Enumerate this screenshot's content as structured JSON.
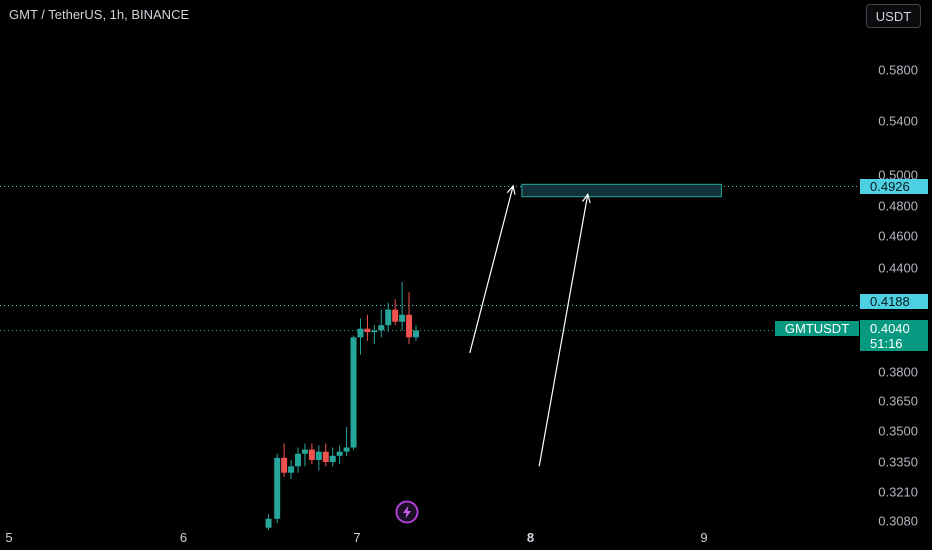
{
  "header": {
    "title": "GMT / TetherUS, 1h, BINANCE",
    "currency": "USDT"
  },
  "price_tags": {
    "target_level": "0.4926",
    "resistance_level": "0.4188",
    "symbol": "GMTUSDT",
    "last_price": "0.4040",
    "countdown": "51:16"
  },
  "colors": {
    "up": "#26a69a",
    "down": "#ef5350",
    "cyan": "#4dd0e1",
    "teal_tag": "#089981",
    "zone_fill": "#12323a",
    "zone_border": "#26a69a",
    "annotation": "#ffffff",
    "grid_text": "#b2b5be"
  },
  "icons": {
    "replay": "lightning-bolt-icon"
  },
  "chart_data": {
    "type": "candlestick",
    "title": "",
    "y_scale": "log",
    "y_ticks": [
      "0.5800",
      "0.5400",
      "0.5000",
      "0.4800",
      "0.4600",
      "0.4400",
      "0.3800",
      "0.3650",
      "0.3500",
      "0.3350",
      "0.3210",
      "0.3080"
    ],
    "x_ticks": [
      "5",
      "6",
      "7",
      "8",
      "9"
    ],
    "x_range": [
      5,
      9.3
    ],
    "y_range": [
      0.307,
      0.62
    ],
    "grid": false,
    "horizontal_lines": [
      {
        "price": 0.4926,
        "style": "dotted",
        "color": "#4dd0e1"
      },
      {
        "price": 0.4188,
        "style": "dotted",
        "color": "#4dd0e1"
      },
      {
        "price": 0.404,
        "style": "dotted",
        "color": "#26a69a"
      }
    ],
    "target_zone": {
      "x_start": 7.95,
      "x_end": 9.1,
      "price_top": 0.494,
      "price_bottom": 0.486
    },
    "arrows": [
      {
        "from": [
          7.65,
          0.391
        ],
        "to": [
          7.9,
          0.493
        ]
      },
      {
        "from": [
          8.05,
          0.333
        ],
        "to": [
          8.33,
          0.4875
        ]
      }
    ],
    "candles": [
      {
        "x": 6.49,
        "o": 0.305,
        "h": 0.311,
        "l": 0.304,
        "c": 0.309
      },
      {
        "x": 6.54,
        "o": 0.309,
        "h": 0.339,
        "l": 0.307,
        "c": 0.337
      },
      {
        "x": 6.58,
        "o": 0.337,
        "h": 0.344,
        "l": 0.328,
        "c": 0.33
      },
      {
        "x": 6.62,
        "o": 0.33,
        "h": 0.336,
        "l": 0.327,
        "c": 0.333
      },
      {
        "x": 6.66,
        "o": 0.333,
        "h": 0.342,
        "l": 0.33,
        "c": 0.339
      },
      {
        "x": 6.7,
        "o": 0.339,
        "h": 0.344,
        "l": 0.333,
        "c": 0.341
      },
      {
        "x": 6.74,
        "o": 0.341,
        "h": 0.344,
        "l": 0.334,
        "c": 0.336
      },
      {
        "x": 6.78,
        "o": 0.336,
        "h": 0.343,
        "l": 0.331,
        "c": 0.34
      },
      {
        "x": 6.82,
        "o": 0.34,
        "h": 0.344,
        "l": 0.333,
        "c": 0.335
      },
      {
        "x": 6.86,
        "o": 0.335,
        "h": 0.342,
        "l": 0.333,
        "c": 0.338
      },
      {
        "x": 6.9,
        "o": 0.338,
        "h": 0.343,
        "l": 0.334,
        "c": 0.34
      },
      {
        "x": 6.94,
        "o": 0.34,
        "h": 0.352,
        "l": 0.338,
        "c": 0.342
      },
      {
        "x": 6.98,
        "o": 0.342,
        "h": 0.401,
        "l": 0.341,
        "c": 0.4
      },
      {
        "x": 7.02,
        "o": 0.4,
        "h": 0.411,
        "l": 0.39,
        "c": 0.405
      },
      {
        "x": 7.06,
        "o": 0.405,
        "h": 0.413,
        "l": 0.398,
        "c": 0.403
      },
      {
        "x": 7.1,
        "o": 0.403,
        "h": 0.407,
        "l": 0.396,
        "c": 0.404
      },
      {
        "x": 7.14,
        "o": 0.404,
        "h": 0.416,
        "l": 0.4,
        "c": 0.407
      },
      {
        "x": 7.18,
        "o": 0.407,
        "h": 0.42,
        "l": 0.403,
        "c": 0.416
      },
      {
        "x": 7.22,
        "o": 0.416,
        "h": 0.422,
        "l": 0.407,
        "c": 0.409
      },
      {
        "x": 7.26,
        "o": 0.409,
        "h": 0.432,
        "l": 0.404,
        "c": 0.413
      },
      {
        "x": 7.3,
        "o": 0.413,
        "h": 0.426,
        "l": 0.396,
        "c": 0.4
      },
      {
        "x": 7.34,
        "o": 0.4,
        "h": 0.407,
        "l": 0.398,
        "c": 0.404
      }
    ]
  }
}
